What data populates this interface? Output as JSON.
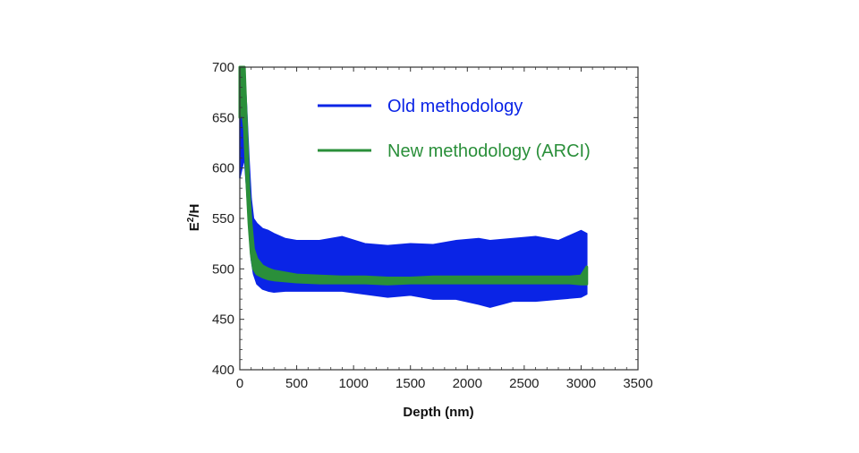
{
  "chart_data": {
    "type": "line",
    "title": "",
    "xlabel": "Depth (nm)",
    "ylabel_base": "E",
    "ylabel_sup": "2",
    "ylabel_rest": "/H",
    "xlim": [
      0,
      3500
    ],
    "ylim": [
      400,
      700
    ],
    "xticks": [
      0,
      500,
      1000,
      1500,
      2000,
      2500,
      3000,
      3500
    ],
    "yticks": [
      400,
      450,
      500,
      550,
      600,
      650,
      700
    ],
    "xtick_labels": [
      "0",
      "500",
      "1000",
      "1500",
      "2000",
      "2500",
      "3000",
      "3500"
    ],
    "ytick_labels": [
      "400",
      "450",
      "500",
      "550",
      "600",
      "650",
      "700"
    ],
    "grid": false,
    "legend_position": "top-right",
    "series": [
      {
        "name": "Old methodology",
        "color": "#0a24e6",
        "x": [
          0,
          20,
          40,
          60,
          80,
          100,
          120,
          150,
          200,
          250,
          300,
          400,
          500,
          700,
          900,
          1100,
          1300,
          1500,
          1700,
          1900,
          2100,
          2200,
          2400,
          2600,
          2800,
          3000,
          3050
        ],
        "upper": [
          700,
          700,
          700,
          660,
          610,
          570,
          550,
          545,
          540,
          538,
          535,
          530,
          528,
          528,
          532,
          525,
          523,
          525,
          524,
          528,
          530,
          528,
          530,
          532,
          528,
          538,
          535
        ],
        "lower": [
          590,
          600,
          610,
          580,
          540,
          510,
          495,
          485,
          480,
          478,
          477,
          478,
          478,
          478,
          478,
          475,
          472,
          474,
          470,
          470,
          465,
          462,
          468,
          468,
          470,
          472,
          475
        ]
      },
      {
        "name": "New methodology (ARCI)",
        "color": "#2a8f3a",
        "x": [
          0,
          20,
          40,
          60,
          80,
          100,
          120,
          150,
          200,
          250,
          300,
          400,
          500,
          700,
          900,
          1100,
          1300,
          1500,
          1700,
          1900,
          2100,
          2300,
          2500,
          2700,
          2900,
          3000,
          3050
        ],
        "upper": [
          700,
          700,
          700,
          640,
          580,
          545,
          520,
          510,
          503,
          500,
          498,
          496,
          494,
          493,
          492,
          492,
          491,
          491,
          492,
          492,
          492,
          492,
          492,
          492,
          492,
          493,
          502
        ],
        "lower": [
          650,
          660,
          640,
          590,
          545,
          515,
          500,
          495,
          492,
          490,
          489,
          488,
          487,
          486,
          486,
          486,
          485,
          486,
          486,
          486,
          486,
          486,
          486,
          486,
          486,
          485,
          485
        ]
      }
    ]
  }
}
